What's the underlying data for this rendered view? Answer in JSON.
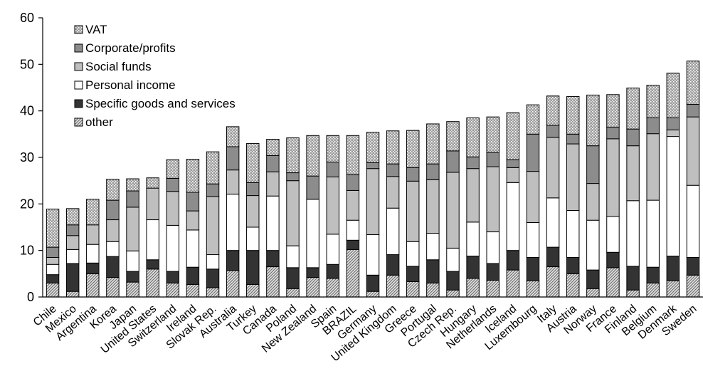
{
  "chart_data": {
    "type": "bar",
    "stacked": true,
    "title": "",
    "xlabel": "",
    "ylabel": "",
    "ylim": [
      0,
      60
    ],
    "yticks": [
      0,
      10,
      20,
      30,
      40,
      50,
      60
    ],
    "grid": false,
    "legend_position": "top-left",
    "categories": [
      "Chile",
      "Mexico",
      "Argentina",
      "Korea",
      "Japan",
      "United States",
      "Switzerland",
      "Ireland",
      "Slovak Rep.",
      "Australia",
      "Turkey",
      "Canada",
      "Poland",
      "New Zealand",
      "Spain",
      "BRAZIL",
      "Germany",
      "United Kingdom",
      "Greece",
      "Portugal",
      "Czech Rep.",
      "Hungary",
      "Netherlands",
      "Iceland",
      "Luxembourg",
      "Italy",
      "Austria",
      "Norway",
      "France",
      "Finland",
      "Belgium",
      "Denmark",
      "Sweden"
    ],
    "series": [
      {
        "name": "other",
        "color": "#c8c8c8",
        "pattern": "diagonal",
        "values": [
          3.0,
          1.2,
          5.0,
          4.2,
          3.2,
          6.0,
          3.0,
          2.7,
          2.0,
          5.7,
          2.7,
          6.5,
          1.8,
          4.2,
          4.0,
          10.2,
          1.2,
          4.7,
          3.3,
          3.0,
          1.5,
          4.0,
          3.6,
          5.8,
          3.5,
          6.5,
          5.0,
          1.8,
          6.3,
          1.5,
          3.0,
          3.5,
          4.7
        ]
      },
      {
        "name": "Specific goods and services",
        "color": "#333333",
        "pattern": "solid",
        "values": [
          1.8,
          6.0,
          2.3,
          4.5,
          2.3,
          2.0,
          2.5,
          3.7,
          4.0,
          4.3,
          7.3,
          3.5,
          4.5,
          2.1,
          3.0,
          2.0,
          3.5,
          4.4,
          3.3,
          5.0,
          4.0,
          4.8,
          3.6,
          4.2,
          5.0,
          4.2,
          3.5,
          4.0,
          3.3,
          5.1,
          3.4,
          5.3,
          3.8
        ]
      },
      {
        "name": "Personal income",
        "color": "#ffffff",
        "pattern": "solid",
        "values": [
          2.2,
          3.0,
          4.0,
          3.2,
          4.4,
          8.6,
          9.9,
          8.0,
          3.1,
          12.1,
          5.0,
          11.7,
          4.7,
          14.7,
          6.5,
          4.3,
          8.7,
          10.0,
          5.3,
          5.7,
          5.0,
          7.3,
          6.8,
          14.6,
          7.5,
          10.6,
          10.1,
          10.7,
          7.7,
          14.1,
          14.4,
          25.7,
          15.5
        ]
      },
      {
        "name": "Social funds",
        "color": "#bfbfbf",
        "pattern": "solid",
        "values": [
          1.5,
          3.0,
          4.2,
          4.7,
          9.4,
          6.8,
          7.3,
          4.1,
          12.5,
          5.2,
          6.8,
          5.2,
          14.0,
          0,
          12.3,
          6.4,
          14.2,
          6.8,
          13.0,
          11.5,
          16.3,
          11.5,
          14.0,
          3.2,
          11.0,
          13.0,
          14.3,
          7.9,
          16.7,
          11.8,
          14.3,
          1.4,
          14.7
        ]
      },
      {
        "name": "Corporate/profits",
        "color": "#8c8c8c",
        "pattern": "solid",
        "values": [
          2.2,
          2.3,
          0,
          4.2,
          3.5,
          0,
          2.8,
          4.0,
          2.7,
          5.0,
          2.8,
          3.5,
          1.7,
          5.0,
          3.2,
          3.4,
          1.3,
          2.7,
          2.9,
          3.4,
          4.6,
          2.5,
          3.1,
          1.7,
          8.0,
          2.6,
          2.1,
          8.1,
          2.5,
          3.6,
          3.4,
          2.6,
          2.7
        ]
      },
      {
        "name": "VAT",
        "color": "#aaaaaa",
        "pattern": "dotted",
        "values": [
          8.2,
          3.5,
          5.5,
          4.5,
          2.6,
          2.2,
          4.0,
          7.1,
          6.9,
          4.3,
          8.4,
          3.5,
          7.5,
          8.7,
          5.7,
          8.4,
          6.5,
          7.1,
          8.0,
          8.6,
          6.3,
          8.4,
          7.6,
          10.1,
          6.3,
          6.3,
          8.1,
          10.9,
          7.0,
          8.8,
          7.0,
          9.6,
          9.3
        ]
      }
    ]
  }
}
